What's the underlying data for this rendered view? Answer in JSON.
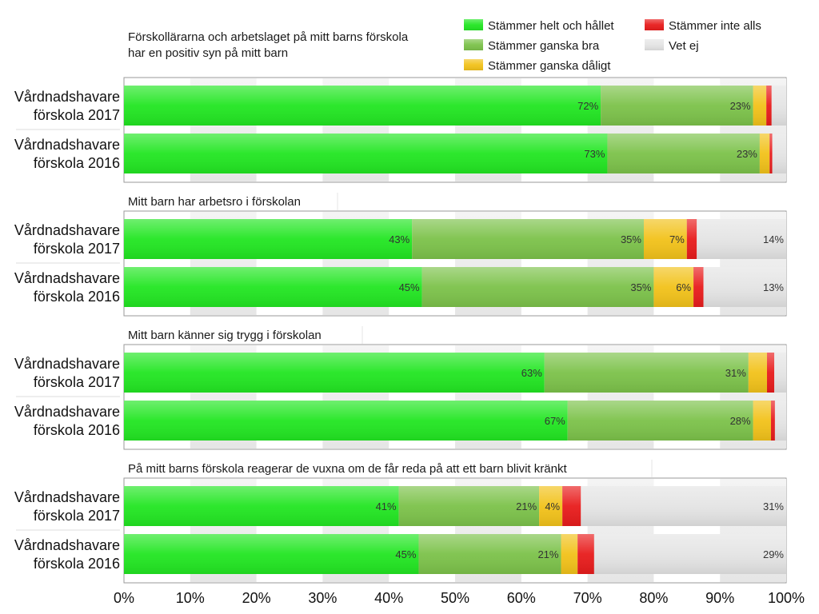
{
  "legend": [
    {
      "label": "Stämmer helt och hållet",
      "color": "#22e622"
    },
    {
      "label": "Stämmer ganska bra",
      "color": "#7cc24a"
    },
    {
      "label": "Stämmer ganska dåligt",
      "color": "#f2c21a"
    },
    {
      "label": "Stämmer inte alls",
      "color": "#e81c1c"
    },
    {
      "label": "Vet ej",
      "color": "#e4e4e4"
    }
  ],
  "chart_data": {
    "type": "bar",
    "orientation": "horizontal",
    "stacked": true,
    "xlim": [
      0,
      100
    ],
    "x_ticks": [
      "0%",
      "10%",
      "20%",
      "30%",
      "40%",
      "50%",
      "60%",
      "70%",
      "80%",
      "90%",
      "100%"
    ],
    "grid": "alternating vertical bands",
    "legend_position": "top-right",
    "series_names": [
      "Stämmer helt och hållet",
      "Stämmer ganska bra",
      "Stämmer ganska dåligt",
      "Stämmer inte alls",
      "Vet ej"
    ],
    "panels": [
      {
        "title_lines": [
          "Förskollärarna och arbetslaget på mitt barns förskola",
          "har en positiv syn på mitt barn"
        ],
        "rows": [
          {
            "label_lines": [
              "Vårdnadshavare",
              "förskola 2017"
            ],
            "values": [
              72,
              23,
              2,
              0.8,
              2.2
            ],
            "labels": [
              "72%",
              "23%",
              "",
              "",
              ""
            ]
          },
          {
            "label_lines": [
              "Vårdnadshavare",
              "förskola 2016"
            ],
            "values": [
              73,
              23,
              1.5,
              0.4,
              2.1
            ],
            "labels": [
              "73%",
              "23%",
              "",
              "",
              ""
            ]
          }
        ]
      },
      {
        "title_lines": [
          "Mitt barn har arbetsro i förskolan"
        ],
        "rows": [
          {
            "label_lines": [
              "Vårdnadshavare",
              "förskola 2017"
            ],
            "values": [
              43.5,
              35,
              6.5,
              1.5,
              13.5
            ],
            "labels": [
              "43%",
              "35%",
              "7%",
              "",
              "14%"
            ]
          },
          {
            "label_lines": [
              "Vårdnadshavare",
              "förskola 2016"
            ],
            "values": [
              45,
              35,
              6,
              1.5,
              12.5
            ],
            "labels": [
              "45%",
              "35%",
              "6%",
              "",
              "13%"
            ]
          }
        ]
      },
      {
        "title_lines": [
          "Mitt barn känner sig trygg i förskolan"
        ],
        "rows": [
          {
            "label_lines": [
              "Vårdnadshavare",
              "förskola 2017"
            ],
            "values": [
              63.5,
              30.8,
              2.8,
              1.1,
              1.8
            ],
            "labels": [
              "63%",
              "31%",
              "",
              "",
              ""
            ]
          },
          {
            "label_lines": [
              "Vårdnadshavare",
              "förskola 2016"
            ],
            "values": [
              67,
              28,
              2.7,
              0.6,
              1.7
            ],
            "labels": [
              "67%",
              "28%",
              "",
              "",
              ""
            ]
          }
        ]
      },
      {
        "title_lines": [
          "På mitt barns förskola reagerar de vuxna om de får reda på att ett barn blivit kränkt"
        ],
        "rows": [
          {
            "label_lines": [
              "Vårdnadshavare",
              "förskola 2017"
            ],
            "values": [
              41.5,
              21.2,
              3.5,
              2.8,
              31
            ],
            "labels": [
              "41%",
              "21%",
              "4%",
              "",
              "31%"
            ]
          },
          {
            "label_lines": [
              "Vårdnadshavare",
              "förskola 2016"
            ],
            "values": [
              44.5,
              21.5,
              2.5,
              2.5,
              29
            ],
            "labels": [
              "45%",
              "21%",
              "",
              "",
              "29%"
            ]
          }
        ]
      }
    ]
  }
}
